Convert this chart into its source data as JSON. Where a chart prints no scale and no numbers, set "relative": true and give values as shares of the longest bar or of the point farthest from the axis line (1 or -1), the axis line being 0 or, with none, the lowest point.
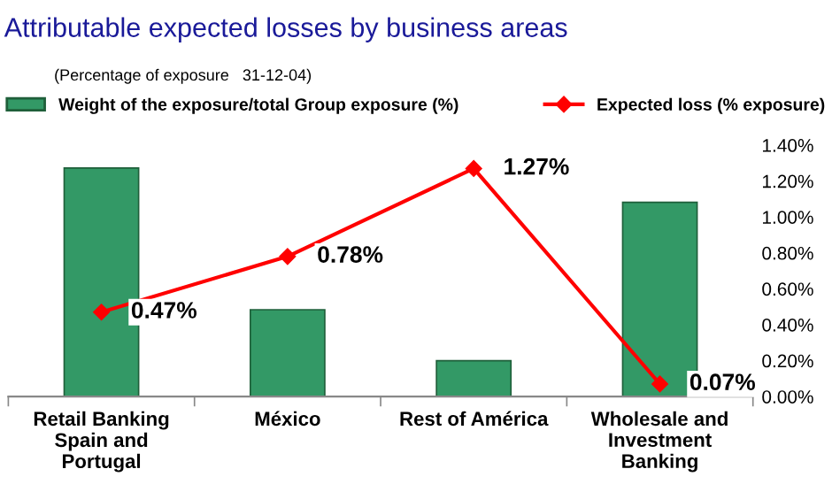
{
  "chart_data": [
    {
      "type": "bar",
      "title": "Attributable expected losses by business areas",
      "subtitle": "(Percentage of exposure   31-12-04)",
      "categories": [
        "Retail Banking\nSpain and\nPortugal",
        "México",
        "Rest of América",
        "Wholesale and\nInvestment\nBanking"
      ],
      "relative": true,
      "legend": "top left",
      "tick_labels": "x",
      "series": [
        {
          "name": "Weight of the exposure/total Group exposure (%)",
          "color": "#339966",
          "values": [
            1,
            0.38,
            0.157,
            0.85
          ]
        }
      ]
    },
    {
      "type": "line",
      "categories": [
        null,
        null,
        null,
        null
      ],
      "legend": "top right",
      "marker": "diamond",
      "tick_labels": "y",
      "series": [
        {
          "name": "Expected loss (% exposure)",
          "color": "#ff0000",
          "values": [
            0.47,
            0.78,
            1.27,
            0.07
          ],
          "value_labels": [
            "0.47%",
            "0.78%",
            "1.27%",
            "0.07%"
          ]
        }
      ],
      "ylim": [
        0,
        1.4
      ],
      "yticks": [
        {
          "value": 0,
          "label": "0.00%"
        },
        {
          "value": 0.2,
          "label": "0.20%"
        },
        {
          "value": 0.4,
          "label": "0.40%"
        },
        {
          "value": 0.6,
          "label": "0.60%"
        },
        {
          "value": 0.8,
          "label": "0.80%"
        },
        {
          "value": 1.0,
          "label": "1.00%"
        },
        {
          "value": 1.2,
          "label": "1.20%"
        },
        {
          "value": 1.4,
          "label": "1.40%"
        }
      ]
    }
  ]
}
